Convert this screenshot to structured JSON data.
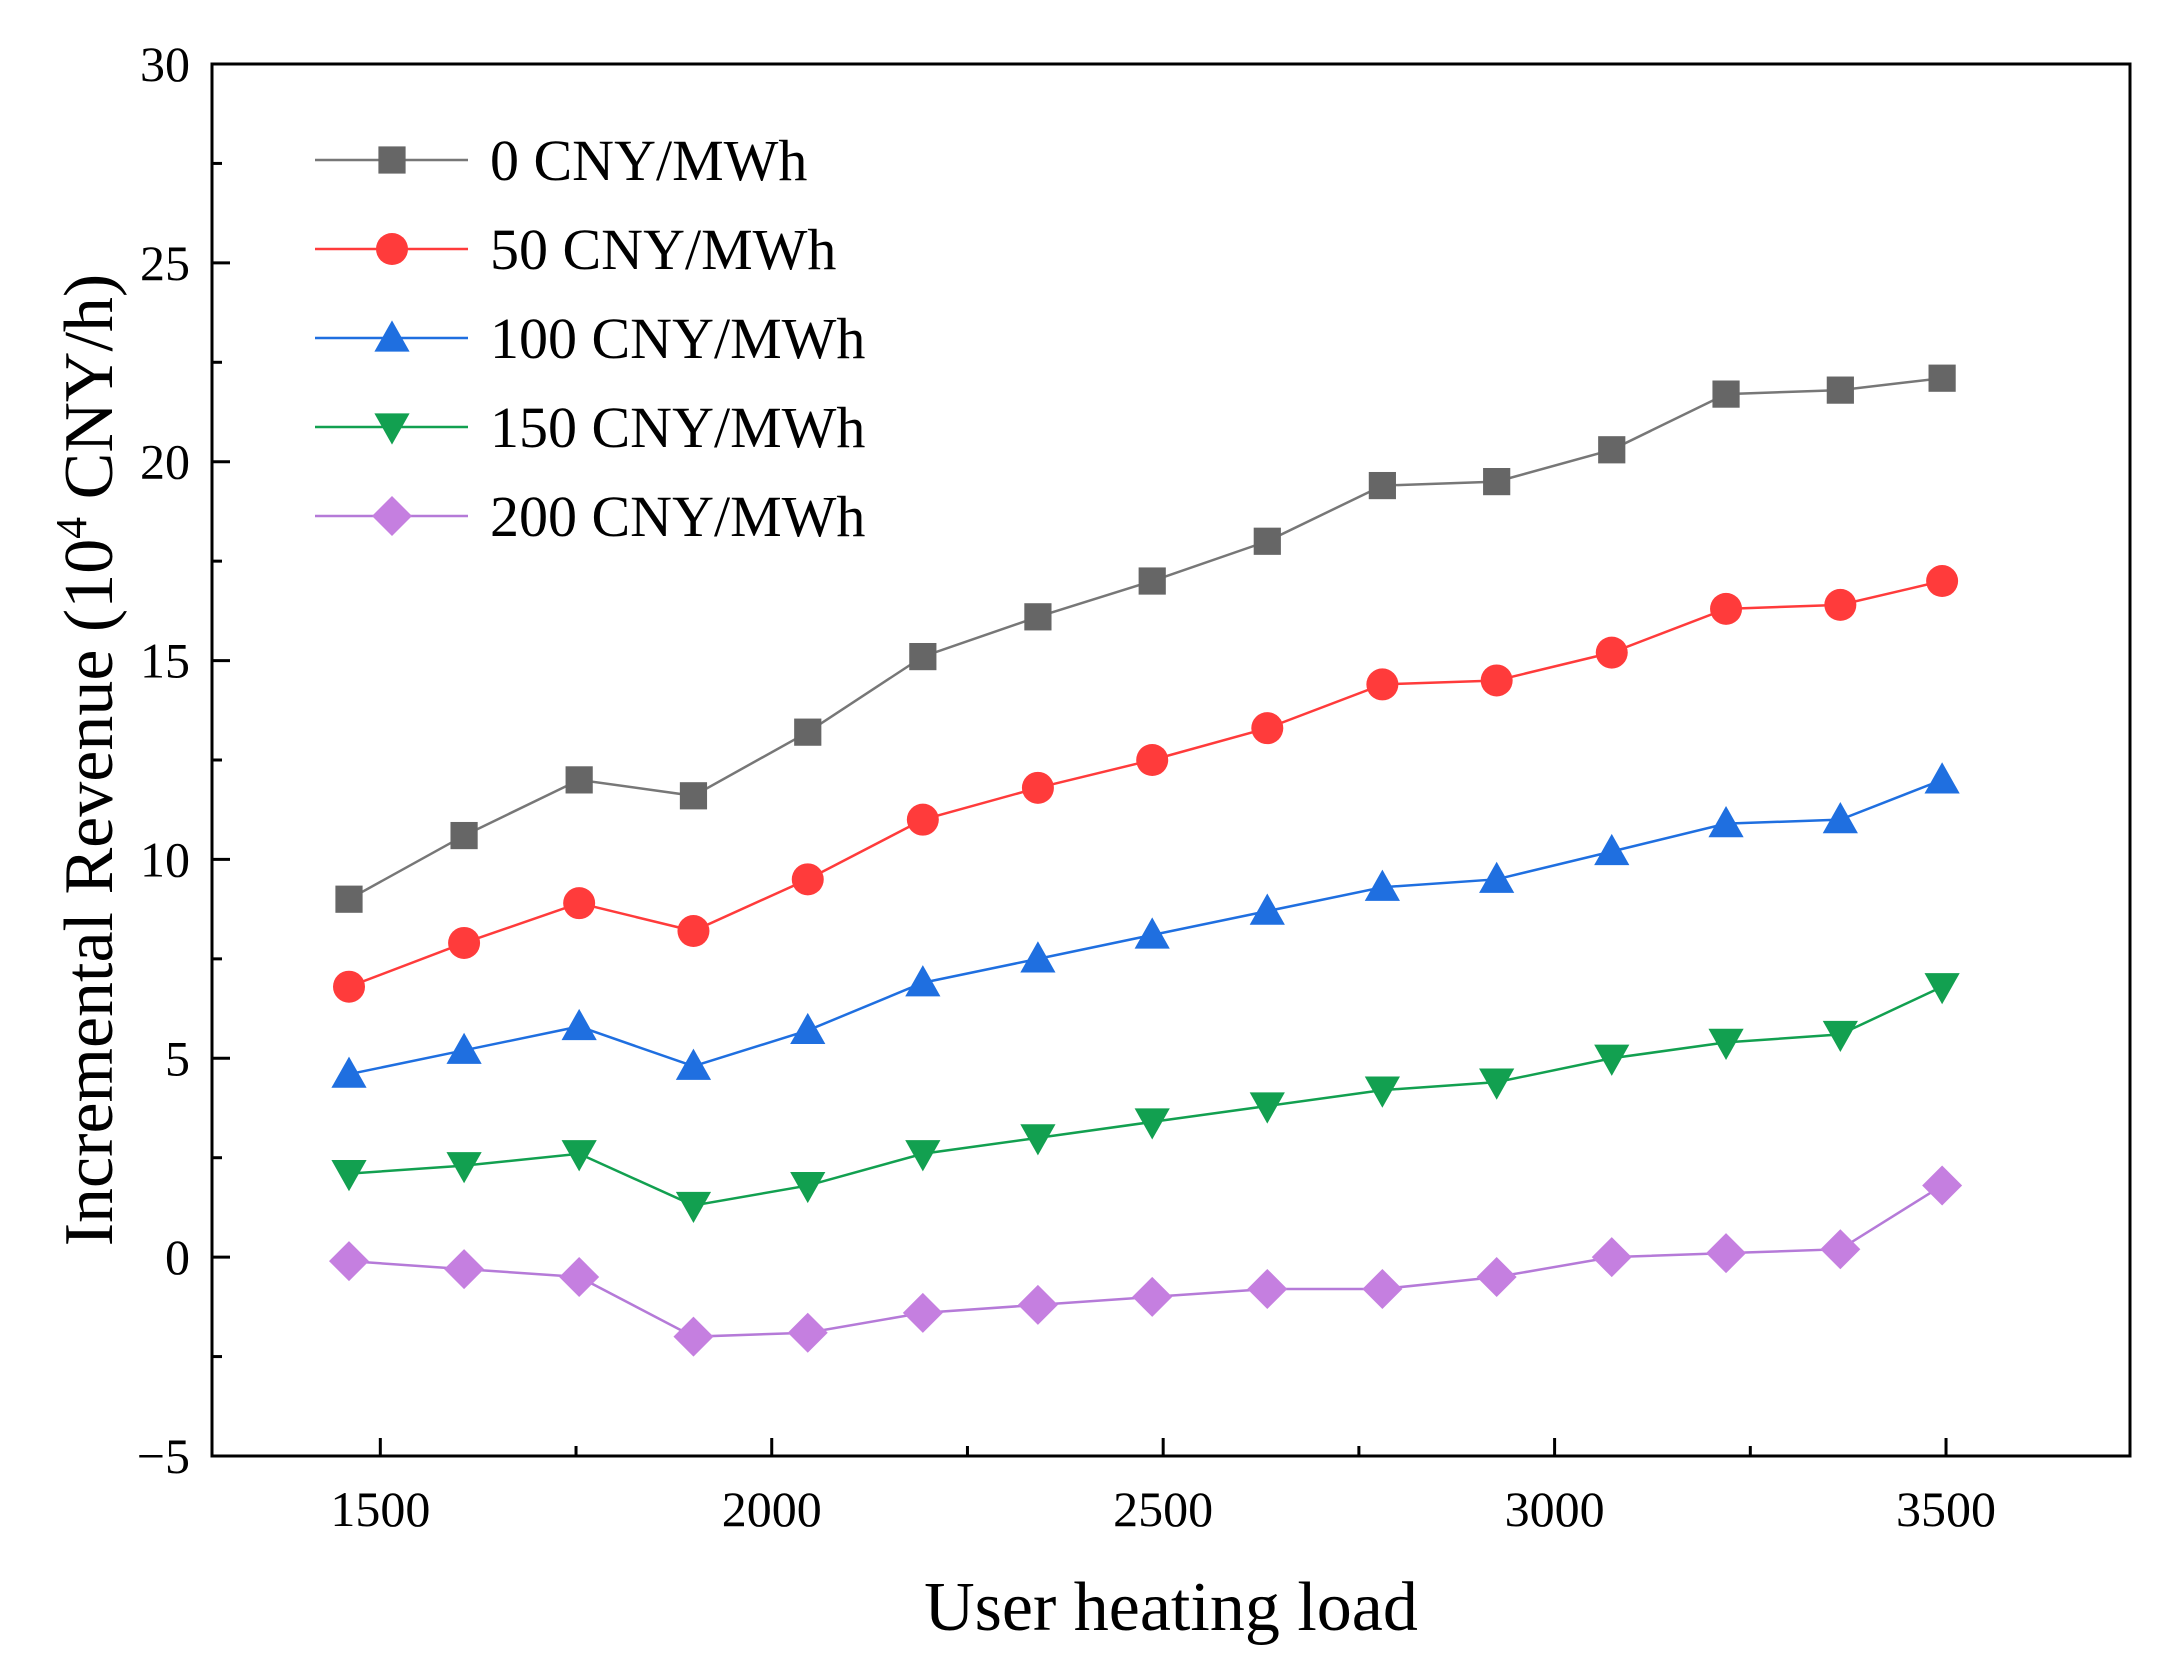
{
  "chart_data": {
    "type": "line",
    "title": "",
    "xlabel": "User heating load",
    "ylabel_main": "Incremental Revenue (10",
    "ylabel_sup": "4",
    "ylabel_tail": " CNY/h)",
    "xlim": [
      1285,
      3735
    ],
    "ylim": [
      -5,
      30
    ],
    "x_ticks": [
      1500,
      2000,
      2500,
      3000,
      3500
    ],
    "x_tick_labels": [
      "1500",
      "2000",
      "2500",
      "3000",
      "3500"
    ],
    "y_ticks": [
      -5,
      0,
      5,
      10,
      15,
      20,
      25,
      30
    ],
    "y_tick_labels": [
      "−5",
      "0",
      "5",
      "10",
      "15",
      "20",
      "25",
      "30"
    ],
    "grid": false,
    "legend_position": "top-left",
    "x": [
      1460,
      1607,
      1754,
      1900,
      2046,
      2193,
      2340,
      2486,
      2633,
      2780,
      2926,
      3073,
      3219,
      3365,
      3495
    ],
    "series": [
      {
        "name": "0 CNY/MWh",
        "marker": "square",
        "color": "#666666",
        "line_color": "#777777",
        "values": [
          9.0,
          10.6,
          12.0,
          11.6,
          13.2,
          15.1,
          16.1,
          17.0,
          18.0,
          19.4,
          19.5,
          20.3,
          21.7,
          21.8,
          22.1
        ]
      },
      {
        "name": "50 CNY/MWh",
        "marker": "circle",
        "color": "#ff3b3b",
        "line_color": "#ff3b3b",
        "values": [
          6.8,
          7.9,
          8.9,
          8.2,
          9.5,
          11.0,
          11.8,
          12.5,
          13.3,
          14.4,
          14.5,
          15.2,
          16.3,
          16.4,
          17.0
        ]
      },
      {
        "name": "100 CNY/MWh",
        "marker": "triangle-up",
        "color": "#1f6fe0",
        "line_color": "#1f6fe0",
        "values": [
          4.6,
          5.2,
          5.8,
          4.8,
          5.7,
          6.9,
          7.5,
          8.1,
          8.7,
          9.3,
          9.5,
          10.2,
          10.9,
          11.0,
          12.0
        ]
      },
      {
        "name": "150 CNY/MWh",
        "marker": "triangle-down",
        "color": "#12a050",
        "line_color": "#12a050",
        "values": [
          2.1,
          2.3,
          2.6,
          1.3,
          1.8,
          2.6,
          3.0,
          3.4,
          3.8,
          4.2,
          4.4,
          5.0,
          5.4,
          5.6,
          6.8
        ]
      },
      {
        "name": "200 CNY/MWh",
        "marker": "diamond",
        "color": "#c57fe0",
        "line_color": "#b57ad8",
        "values": [
          -0.1,
          -0.3,
          -0.5,
          -2.0,
          -1.9,
          -1.4,
          -1.2,
          -1.0,
          -0.8,
          -0.8,
          -0.5,
          0.0,
          0.1,
          0.2,
          1.8
        ]
      }
    ]
  }
}
